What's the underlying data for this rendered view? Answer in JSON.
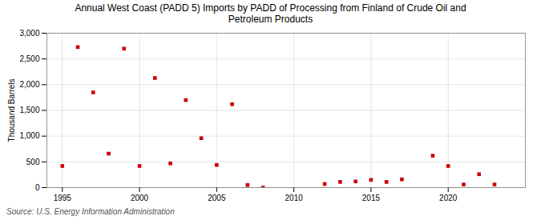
{
  "chart_data": {
    "type": "scatter",
    "title": "Annual West Coast (PADD 5) Imports by PADD of Processing from Finland of Crude Oil and\nPetroleum Products",
    "ylabel": "Thousand Barrels",
    "source": "Source: U.S. Energy Information Administration",
    "x": [
      1995,
      1996,
      1997,
      1998,
      1999,
      2000,
      2001,
      2002,
      2003,
      2004,
      2005,
      2006,
      2007,
      2008,
      2012,
      2013,
      2014,
      2015,
      2016,
      2017,
      2019,
      2020,
      2021,
      2022,
      2023
    ],
    "values": [
      420,
      2730,
      1850,
      660,
      2700,
      420,
      2130,
      470,
      1700,
      960,
      440,
      1620,
      50,
      0,
      70,
      110,
      120,
      150,
      110,
      160,
      620,
      420,
      60,
      260,
      60
    ],
    "color": "#cc0000",
    "marker": "square",
    "xlim": [
      1994.0,
      2025.0
    ],
    "ylim": [
      0,
      3000
    ],
    "xticks": [
      1995,
      2000,
      2005,
      2010,
      2015,
      2020
    ],
    "yticks": [
      0,
      500,
      {
        "value": 1000,
        "label": "1,000"
      },
      {
        "value": 1500,
        "label": "1,500"
      },
      {
        "value": 2000,
        "label": "2,000"
      },
      {
        "value": 2500,
        "label": "2,500"
      },
      {
        "value": 3000,
        "label": "3,000"
      }
    ],
    "grid": true
  }
}
